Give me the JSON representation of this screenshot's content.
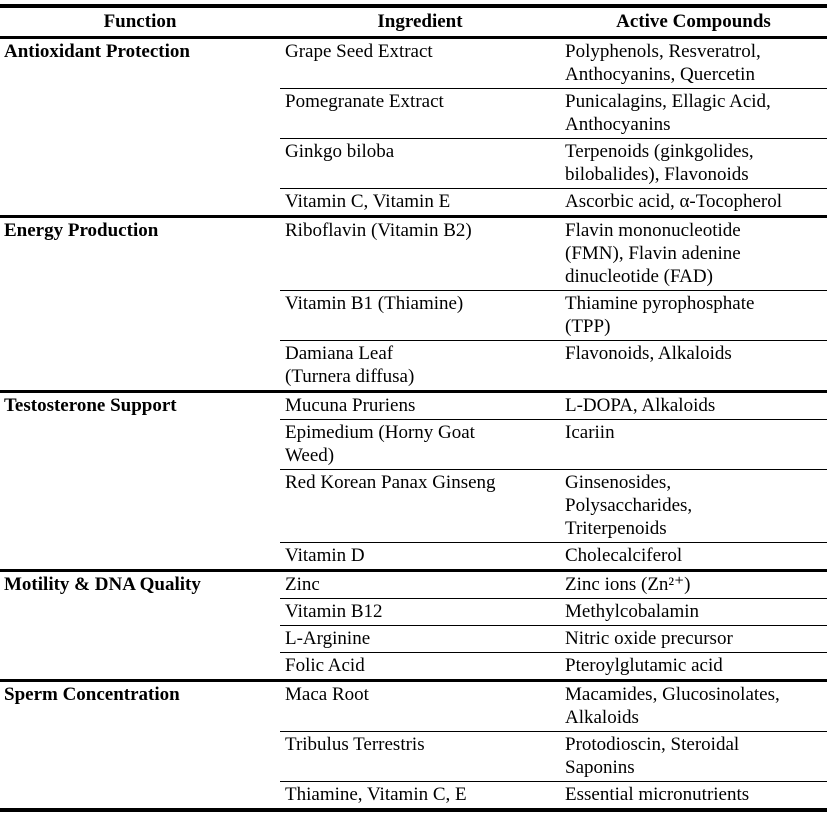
{
  "table": {
    "headers": [
      "Function",
      "Ingredient",
      "Active Compounds"
    ],
    "groups": [
      {
        "function": "Antioxidant Protection",
        "rows": [
          {
            "ingredient": "Grape Seed Extract",
            "compounds": "Polyphenols, Resveratrol,\nAnthocyanins, Quercetin"
          },
          {
            "ingredient": "Pomegranate Extract",
            "compounds": "Punicalagins, Ellagic Acid,\nAnthocyanins"
          },
          {
            "ingredient": "Ginkgo biloba",
            "compounds": "Terpenoids (ginkgolides,\nbilobalides), Flavonoids"
          },
          {
            "ingredient": "Vitamin C, Vitamin E",
            "compounds": "Ascorbic acid, α-Tocopherol"
          }
        ]
      },
      {
        "function": "Energy Production",
        "rows": [
          {
            "ingredient": "Riboflavin (Vitamin B2)",
            "compounds": "Flavin mononucleotide\n(FMN), Flavin adenine\ndinucleotide (FAD)"
          },
          {
            "ingredient": "Vitamin B1 (Thiamine)",
            "compounds": "Thiamine pyrophosphate\n(TPP)"
          },
          {
            "ingredient": "Damiana Leaf\n(Turnera diffusa)",
            "compounds": "Flavonoids, Alkaloids"
          }
        ]
      },
      {
        "function": "Testosterone Support",
        "rows": [
          {
            "ingredient": "Mucuna Pruriens",
            "compounds": "L-DOPA, Alkaloids"
          },
          {
            "ingredient": "Epimedium (Horny Goat\nWeed)",
            "compounds": "Icariin"
          },
          {
            "ingredient": "Red Korean Panax Ginseng",
            "compounds": "Ginsenosides,\nPolysaccharides,\nTriterpenoids"
          },
          {
            "ingredient": "Vitamin D",
            "compounds": "Cholecalciferol"
          }
        ]
      },
      {
        "function": "Motility & DNA Quality",
        "rows": [
          {
            "ingredient": "Zinc",
            "compounds": "Zinc ions (Zn²⁺)"
          },
          {
            "ingredient": "Vitamin B12",
            "compounds": "Methylcobalamin"
          },
          {
            "ingredient": "L-Arginine",
            "compounds": "Nitric oxide precursor"
          },
          {
            "ingredient": "Folic Acid",
            "compounds": "Pteroylglutamic acid"
          }
        ]
      },
      {
        "function": "Sperm Concentration",
        "rows": [
          {
            "ingredient": "Maca Root",
            "compounds": "Macamides, Glucosinolates,\nAlkaloids"
          },
          {
            "ingredient": "Tribulus Terrestris",
            "compounds": "Protodioscin, Steroidal\nSaponins"
          },
          {
            "ingredient": "Thiamine, Vitamin C, E",
            "compounds": "Essential micronutrients"
          }
        ]
      }
    ]
  }
}
